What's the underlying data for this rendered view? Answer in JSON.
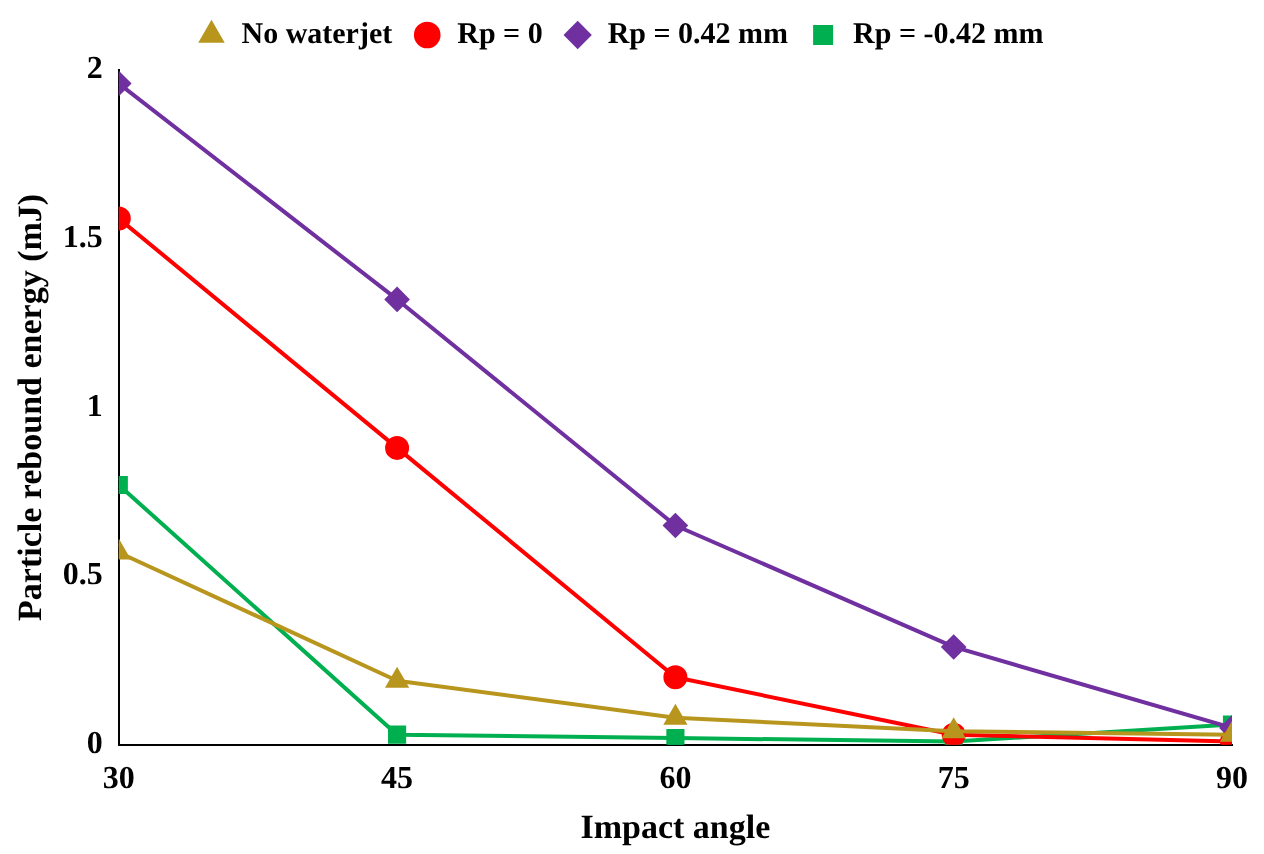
{
  "chart_data": {
    "type": "line",
    "xlabel": "Impact angle",
    "ylabel": "Particle rebound energy (mJ)",
    "x": [
      30,
      45,
      60,
      75,
      90
    ],
    "series": [
      {
        "name": "No waterjet",
        "color": "#b8961e",
        "marker": "triangle",
        "values": [
          0.57,
          0.19,
          0.08,
          0.04,
          0.03
        ]
      },
      {
        "name": "Rp = 0",
        "color": "#ff0000",
        "marker": "circle",
        "values": [
          1.56,
          0.88,
          0.2,
          0.03,
          0.01
        ]
      },
      {
        "name": "Rp = 0.42 mm",
        "color": "#7030a0",
        "marker": "diamond",
        "values": [
          1.96,
          1.32,
          0.65,
          0.29,
          0.05
        ]
      },
      {
        "name": "Rp = -0.42 mm",
        "color": "#00b050",
        "marker": "square",
        "values": [
          0.77,
          0.03,
          0.02,
          0.01,
          0.06
        ]
      }
    ],
    "xlim": [
      30,
      90
    ],
    "xticks": [
      30,
      45,
      60,
      75,
      90
    ],
    "ylim": [
      0,
      2
    ],
    "yticks": [
      0,
      0.5,
      1,
      1.5,
      2
    ],
    "grid": false,
    "legend": "top",
    "line_style": "solid"
  }
}
